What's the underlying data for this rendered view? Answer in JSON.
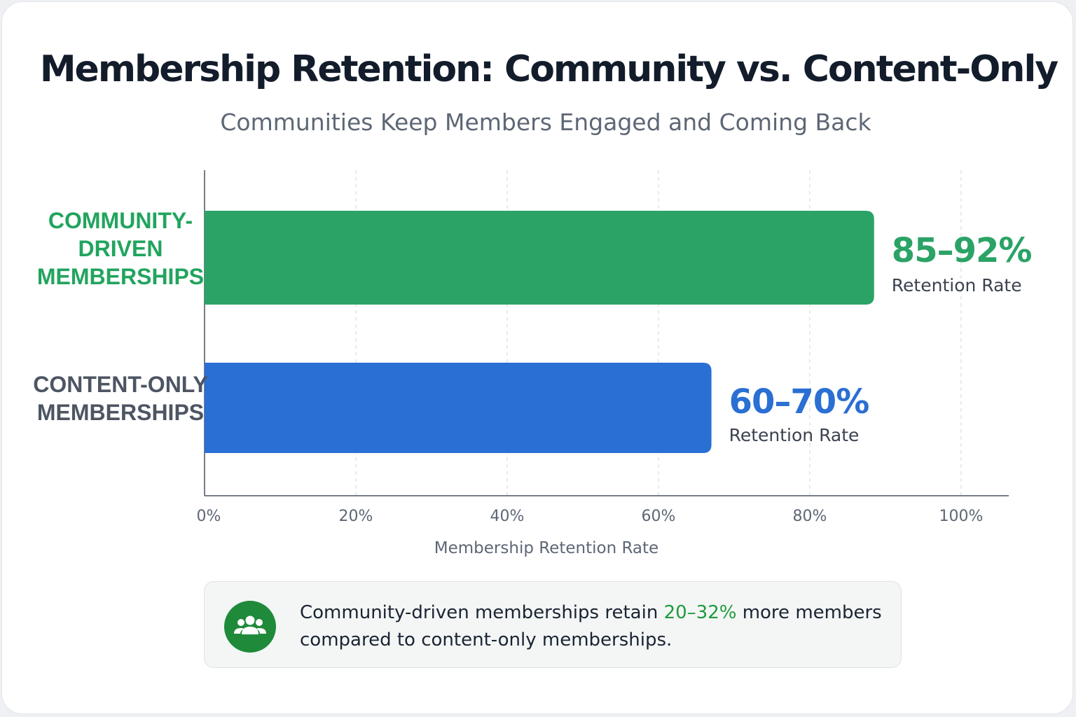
{
  "chart_data": {
    "type": "bar",
    "orientation": "horizontal",
    "title": "Membership Retention: Community vs. Content-Only",
    "subtitle": "Communities Keep Members Engaged and Coming Back",
    "xlabel": "Membership Retention Rate",
    "ylabel": "",
    "xlim": [
      0,
      100
    ],
    "x_ticks": [
      "0%",
      "20%",
      "40%",
      "60%",
      "80%",
      "100%"
    ],
    "x_tick_values": [
      0,
      20,
      40,
      60,
      80,
      100
    ],
    "grid": "vertical dashed",
    "categories": [
      {
        "label_lines": [
          "COMMUNITY-",
          "DRIVEN",
          "MEMBERSHIPS"
        ],
        "bar_value": 88.5,
        "range_low": 85,
        "range_high": 92,
        "value_label": "85–92%",
        "value_sublabel": "Retention Rate",
        "color": "#2ba366"
      },
      {
        "label_lines": [
          "CONTENT-ONLY",
          "MEMBERSHIPS"
        ],
        "bar_value": 67,
        "range_low": 60,
        "range_high": 70,
        "value_label": "60–70%",
        "value_sublabel": "Retention Rate",
        "color": "#2a6fd3"
      }
    ]
  },
  "colors": {
    "community_label": "#22a45e",
    "content_label": "#4d5563",
    "icon_bg": "#1f8a3a",
    "highlight": "#1f9a3e"
  },
  "callout": {
    "icon": "users-group-icon",
    "text_before": "Community-driven memberships retain ",
    "highlight": "20–32%",
    "text_after_line1": " more members",
    "text_line2": "compared to content-only memberships."
  }
}
